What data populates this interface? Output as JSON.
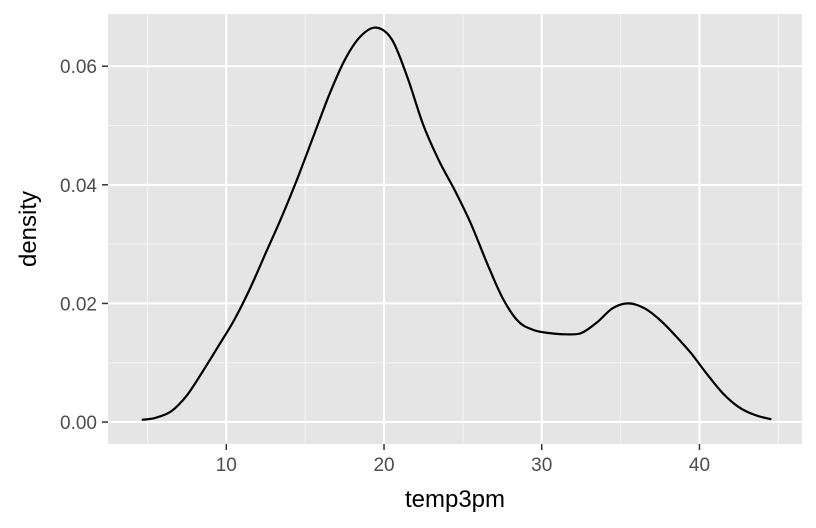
{
  "chart_data": {
    "type": "line",
    "title": "",
    "xlabel": "temp3pm",
    "ylabel": "density",
    "xlim": [
      2.5,
      46.5
    ],
    "ylim": [
      -0.0037,
      0.0688
    ],
    "x_ticks": [
      10,
      20,
      30,
      40
    ],
    "x_tick_labels": [
      "10",
      "20",
      "30",
      "40"
    ],
    "y_ticks": [
      0.0,
      0.02,
      0.04,
      0.06
    ],
    "y_tick_labels": [
      "0.00",
      "0.02",
      "0.04",
      "0.06"
    ],
    "grid": true,
    "series": [
      {
        "x": [
          4.7,
          5.5,
          6.5,
          7.5,
          8.5,
          9.5,
          10.5,
          11.5,
          12.5,
          13.5,
          14.5,
          15.5,
          16.5,
          17.5,
          18.5,
          19.5,
          20.5,
          21.5,
          22.5,
          23.5,
          24.5,
          25.5,
          26.5,
          27.5,
          28.5,
          29.5,
          30.5,
          31.5,
          32.5,
          33.5,
          34.5,
          35.5,
          36.5,
          37.5,
          38.5,
          39.5,
          40.5,
          41.5,
          42.5,
          43.5,
          44.5
        ],
        "y": [
          0.0004,
          0.0007,
          0.0018,
          0.0045,
          0.0085,
          0.0128,
          0.0172,
          0.0225,
          0.0285,
          0.0345,
          0.041,
          0.048,
          0.055,
          0.061,
          0.065,
          0.0665,
          0.0645,
          0.058,
          0.05,
          0.044,
          0.039,
          0.0335,
          0.027,
          0.021,
          0.017,
          0.0155,
          0.015,
          0.0148,
          0.015,
          0.0168,
          0.0192,
          0.02,
          0.0192,
          0.0172,
          0.0145,
          0.0115,
          0.008,
          0.0048,
          0.0025,
          0.0012,
          0.0005
        ]
      }
    ]
  }
}
